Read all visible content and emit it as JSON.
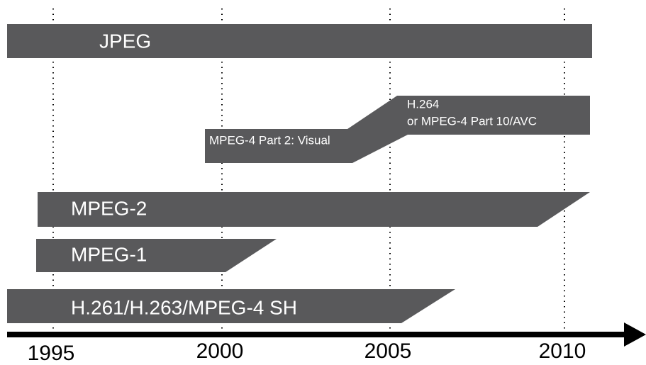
{
  "bars": [
    {
      "label": "JPEG"
    },
    {
      "label": "MPEG-4 Part 2: Visual"
    },
    {
      "label_lines": [
        "H.264",
        "or MPEG-4 Part 10/AVC"
      ]
    },
    {
      "label": "MPEG-2"
    },
    {
      "label": "MPEG-1"
    },
    {
      "label": "H.261/H.263/MPEG-4 SH"
    }
  ],
  "axis": {
    "ticks": [
      "1995",
      "2000",
      "2005",
      "2010"
    ]
  }
}
